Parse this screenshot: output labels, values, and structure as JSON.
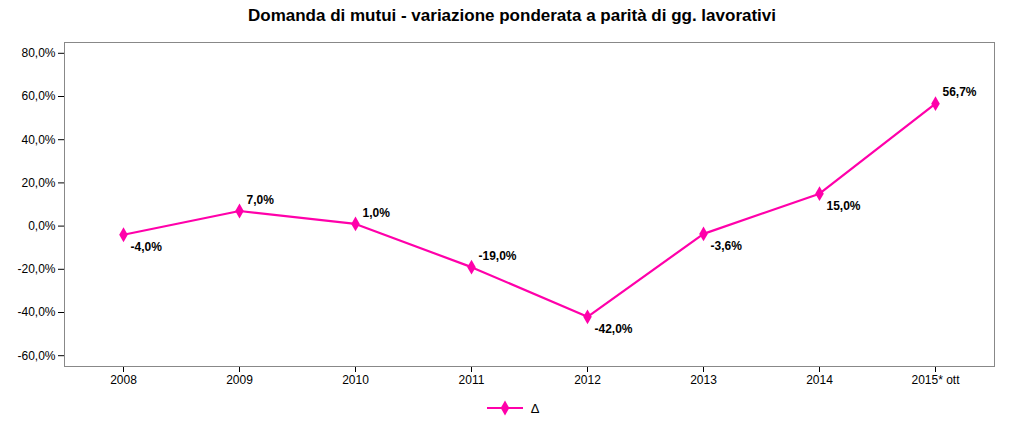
{
  "chart_data": {
    "type": "line",
    "title": "Domanda di mutui - variazione ponderata a parità di gg. lavorativi",
    "categories": [
      "2008",
      "2009",
      "2010",
      "2011",
      "2012",
      "2013",
      "2014",
      "2015* ott"
    ],
    "series": [
      {
        "name": "Δ",
        "color": "#FF00AA",
        "marker": "diamond",
        "values": [
          -4.0,
          7.0,
          1.0,
          -19.0,
          -42.0,
          -3.6,
          15.0,
          56.7
        ],
        "value_labels": [
          "-4,0%",
          "7,0%",
          "1,0%",
          "-19,0%",
          "-42,0%",
          "-3,6%",
          "15,0%",
          "56,7%"
        ]
      }
    ],
    "ylim": [
      -65,
      85
    ],
    "yticks": [
      {
        "value": -60,
        "label": "-60,0%"
      },
      {
        "value": -40,
        "label": "-40,0%"
      },
      {
        "value": -20,
        "label": "-20,0%"
      },
      {
        "value": 0,
        "label": "0,0%"
      },
      {
        "value": 20,
        "label": "20,0%"
      },
      {
        "value": 40,
        "label": "40,0%"
      },
      {
        "value": 60,
        "label": "60,0%"
      },
      {
        "value": 80,
        "label": "80,0%"
      }
    ],
    "grid": false,
    "legend": "bottom",
    "data_labels": true
  }
}
